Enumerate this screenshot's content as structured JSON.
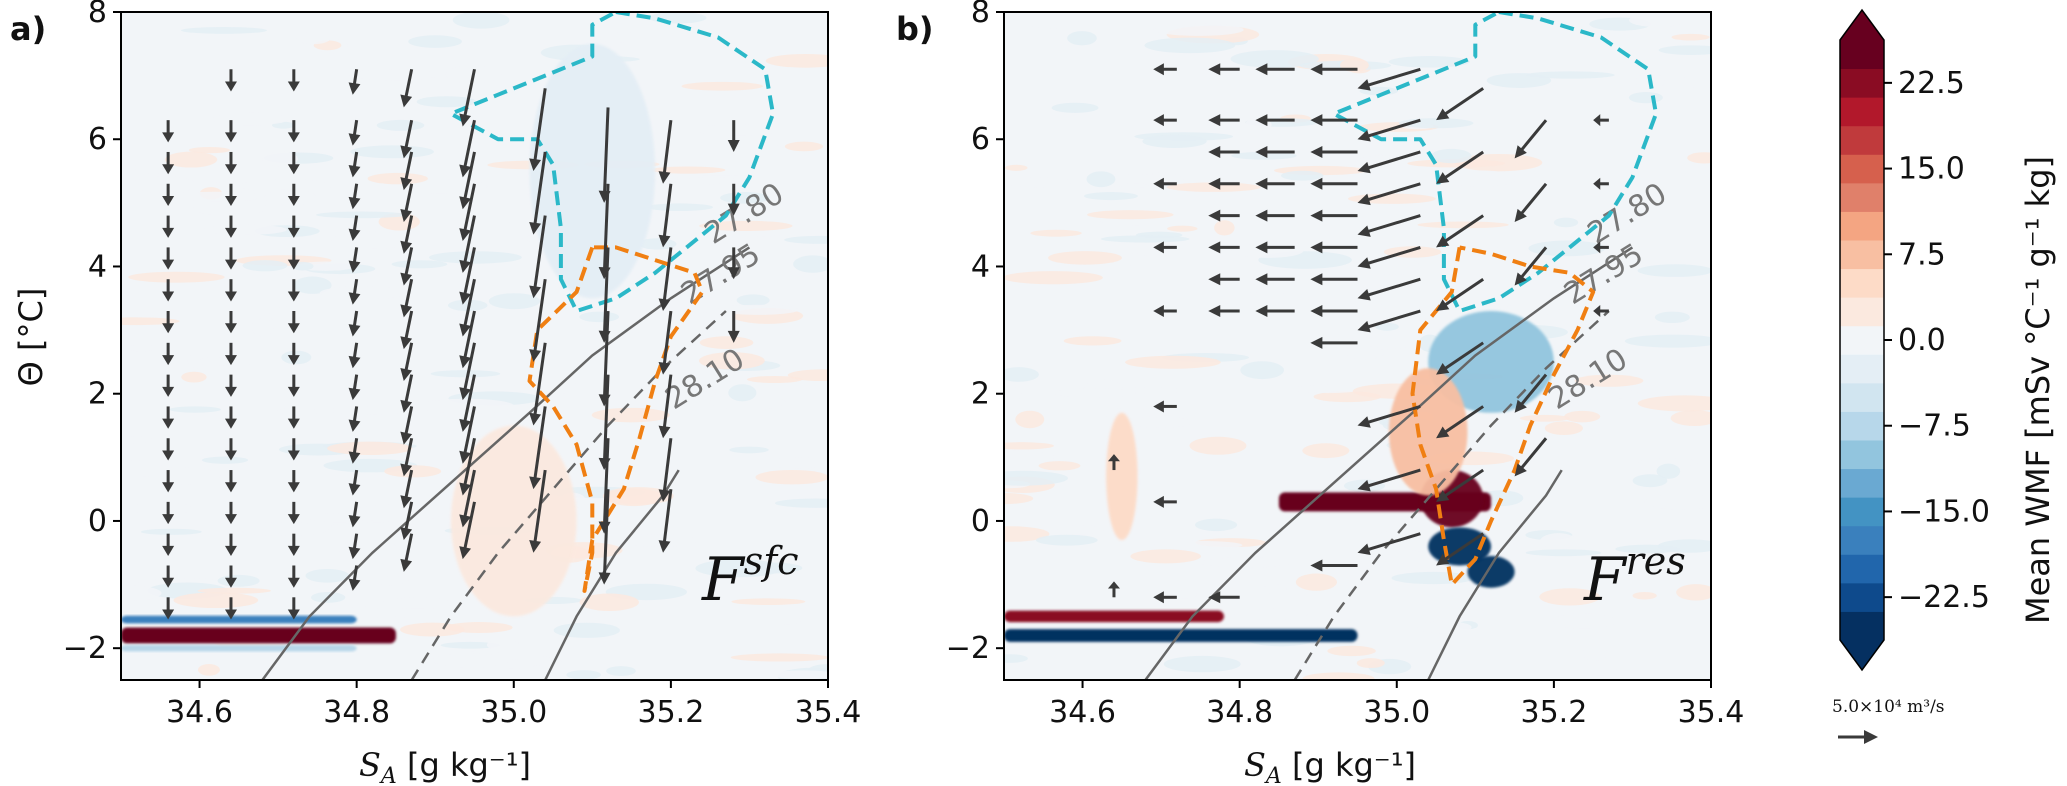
{
  "colors": {
    "arrow": "#3a3a3a",
    "isopycnal": "#666666",
    "cyan_contour": "#2bb8c8",
    "orange_contour": "#f07f12",
    "cmap": [
      "#053061",
      "#0e4a8c",
      "#2166ac",
      "#3a80bd",
      "#4393c3",
      "#6aa9d2",
      "#92c5de",
      "#b7d7ea",
      "#d1e5f0",
      "#e4eef5",
      "#f2f5f8",
      "#fbe9df",
      "#fddbc7",
      "#f8bfa2",
      "#f4a582",
      "#e0806a",
      "#d6604d",
      "#c03a3c",
      "#b2182b",
      "#8a0c23",
      "#67001f"
    ]
  },
  "panels": [
    {
      "tag": "a)",
      "flux": "F",
      "flux_sup": "sfc"
    },
    {
      "tag": "b)",
      "flux": "F",
      "flux_sup": "res"
    }
  ],
  "axes": {
    "ylabel": "Θ [°C]",
    "xlabel_s": "S",
    "xlabel_sub": "A",
    "xlabel_rest": " [g kg⁻¹]",
    "xticks": [
      34.6,
      34.8,
      35.0,
      35.2,
      35.4
    ],
    "xtick_labels": [
      "34.6",
      "34.8",
      "35.0",
      "35.2",
      "35.4"
    ],
    "yticks": [
      -2,
      0,
      2,
      4,
      6,
      8
    ],
    "ytick_labels": [
      "−2",
      "0",
      "2",
      "4",
      "6",
      "8"
    ],
    "xlim": [
      34.5,
      35.4
    ],
    "ylim": [
      -2.5,
      8
    ]
  },
  "isopycnals": [
    {
      "label": "27.80",
      "style": "solid"
    },
    {
      "label": "27.95",
      "style": "dashed"
    },
    {
      "label": "28.10",
      "style": "solid"
    }
  ],
  "colorbar": {
    "label": "Mean WMF [mSv °C⁻¹ g⁻¹ kg]",
    "ticks": [
      22.5,
      15.0,
      7.5,
      0.0,
      -7.5,
      -15.0,
      -22.5
    ],
    "tick_labels": [
      "22.5",
      "15.0",
      "7.5",
      "0.0",
      "−7.5",
      "−15.0",
      "−22.5"
    ],
    "range": [
      -26.25,
      26.25
    ]
  },
  "quiver_key": {
    "label": "5.0×10⁴ m³/s"
  },
  "chart_data": [
    {
      "type": "heatmap",
      "panel": "a)",
      "description_of_fields": "Filled contours of mean water mass transformation with transformation-velocity arrows in S_A–Θ space",
      "xlabel": "S_A [g kg⁻¹]",
      "ylabel": "Θ [°C]",
      "xlim": [
        34.5,
        35.4
      ],
      "ylim": [
        -2.5,
        8
      ],
      "label": "F^sfc",
      "features": [
        {
          "kind": "band",
          "value": 26,
          "s": [
            34.5,
            34.85
          ],
          "t": -1.8,
          "thickness": 0.25
        },
        {
          "kind": "band",
          "value": -18,
          "s": [
            34.5,
            34.8
          ],
          "t": -1.55,
          "thickness": 0.12
        },
        {
          "kind": "band",
          "value": -8,
          "s": [
            34.5,
            34.8
          ],
          "t": -2.0,
          "thickness": 0.1
        },
        {
          "kind": "blob",
          "value": 3,
          "s": 35.0,
          "t": 0.0,
          "rs": 0.08,
          "rt": 1.5
        },
        {
          "kind": "blob",
          "value": -3,
          "s": 35.1,
          "t": 5.5,
          "rs": 0.08,
          "rt": 2.0
        }
      ],
      "arrow_columns": [
        {
          "s": 34.56,
          "t": [
            6.3,
            5.8,
            5.3,
            4.8,
            4.3,
            3.8,
            3.3,
            2.8,
            2.3,
            1.8,
            1.3,
            0.8,
            0.3,
            -0.2,
            -0.7,
            -1.2
          ],
          "dt": -0.35,
          "ds": 0.0
        },
        {
          "s": 34.64,
          "t": [
            7.1,
            6.3,
            5.8,
            5.3,
            4.8,
            4.3,
            3.8,
            3.3,
            2.8,
            2.3,
            1.8,
            1.3,
            0.8,
            0.3,
            -0.2,
            -0.7,
            -1.2
          ],
          "dt": -0.35,
          "ds": 0.0
        },
        {
          "s": 34.72,
          "t": [
            7.1,
            6.3,
            5.8,
            5.3,
            4.8,
            4.3,
            3.8,
            3.3,
            2.8,
            2.3,
            1.8,
            1.3,
            0.8,
            0.3,
            -0.2,
            -0.7,
            -1.2
          ],
          "dt": -0.35,
          "ds": 0.0
        },
        {
          "s": 34.8,
          "t": [
            7.1,
            6.3,
            5.8,
            5.3,
            4.8,
            4.3,
            3.8,
            3.3,
            2.8,
            2.3,
            1.8,
            1.3,
            0.8,
            0.3,
            -0.2,
            -0.7
          ],
          "dt": -0.4,
          "ds": -0.005
        },
        {
          "s": 34.87,
          "t": [
            7.1,
            6.3,
            5.8,
            5.3,
            4.8,
            4.3,
            3.8,
            3.3,
            2.8,
            2.3,
            1.8,
            1.3,
            0.8,
            0.3,
            -0.2
          ],
          "dt": -0.6,
          "ds": -0.01
        },
        {
          "s": 34.95,
          "t": [
            7.1,
            6.3,
            5.8,
            5.3,
            4.8,
            4.3,
            3.8,
            3.3,
            2.8,
            2.3,
            1.8,
            1.3,
            0.8,
            0.3
          ],
          "dt": -0.9,
          "ds": -0.015
        },
        {
          "s": 35.04,
          "t": [
            6.8,
            5.8,
            4.8,
            3.8,
            2.8,
            1.8,
            0.8
          ],
          "dt": -1.3,
          "ds": -0.015
        },
        {
          "s": 35.12,
          "t": [
            6.5,
            5.3,
            4.3,
            3.3,
            2.3,
            1.3,
            0.5
          ],
          "dt": -1.5,
          "ds": -0.005
        },
        {
          "s": 35.2,
          "t": [
            6.3,
            5.3,
            4.3,
            3.3,
            2.3,
            1.3,
            0.5
          ],
          "dt": -1.0,
          "ds": -0.01
        },
        {
          "s": 35.28,
          "t": [
            6.3,
            5.3,
            4.3,
            3.3
          ],
          "dt": -0.5,
          "ds": 0.0
        }
      ]
    },
    {
      "type": "heatmap",
      "panel": "b)",
      "description_of_fields": "Filled contours of mean water mass transformation with transformation-velocity arrows in S_A–Θ space",
      "xlabel": "S_A [g kg⁻¹]",
      "ylabel": "Θ [°C]",
      "xlim": [
        34.5,
        35.4
      ],
      "ylim": [
        -2.5,
        8
      ],
      "label": "F^res",
      "features": [
        {
          "kind": "band",
          "value": 22,
          "s": [
            34.5,
            34.78
          ],
          "t": -1.5,
          "thickness": 0.18
        },
        {
          "kind": "band",
          "value": -26,
          "s": [
            34.5,
            34.95
          ],
          "t": -1.8,
          "thickness": 0.2
        },
        {
          "kind": "band",
          "value": 26,
          "s": [
            34.85,
            35.12
          ],
          "t": 0.3,
          "thickness": 0.3
        },
        {
          "kind": "blob",
          "value": 26,
          "s": 35.07,
          "t": 0.35,
          "rs": 0.04,
          "rt": 0.45
        },
        {
          "kind": "blob",
          "value": -26,
          "s": 35.08,
          "t": -0.4,
          "rs": 0.04,
          "rt": 0.3
        },
        {
          "kind": "blob",
          "value": -26,
          "s": 35.12,
          "t": -0.8,
          "rs": 0.03,
          "rt": 0.25
        },
        {
          "kind": "blob",
          "value": -9,
          "s": 35.12,
          "t": 2.5,
          "rs": 0.08,
          "rt": 0.8
        },
        {
          "kind": "blob",
          "value": 8,
          "s": 35.04,
          "t": 1.4,
          "rs": 0.05,
          "rt": 1.0
        },
        {
          "kind": "blob",
          "value": 5,
          "s": 34.65,
          "t": 0.7,
          "rs": 0.02,
          "rt": 1.0
        }
      ],
      "arrow_columns": [
        {
          "s": 34.64,
          "t": [
            0.8,
            -1.2
          ],
          "dt": 0.25,
          "ds": 0.0
        },
        {
          "s": 34.72,
          "t": [
            7.1,
            6.3,
            5.3,
            4.3,
            3.3,
            1.8,
            0.3,
            -1.2
          ],
          "dt": 0.0,
          "ds": -0.03
        },
        {
          "s": 34.8,
          "t": [
            7.1,
            6.3,
            5.8,
            5.3,
            4.8,
            4.3,
            3.8,
            3.3,
            -1.2
          ],
          "dt": 0.0,
          "ds": -0.04
        },
        {
          "s": 34.87,
          "t": [
            7.1,
            6.3,
            5.8,
            5.3,
            4.8,
            4.3,
            3.8,
            3.3
          ],
          "dt": 0.0,
          "ds": -0.05
        },
        {
          "s": 34.95,
          "t": [
            7.1,
            6.3,
            5.8,
            5.3,
            4.8,
            4.3,
            3.8,
            3.3,
            2.8,
            -0.7
          ],
          "dt": 0.0,
          "ds": -0.06
        },
        {
          "s": 35.03,
          "t": [
            7.1,
            6.3,
            5.8,
            5.3,
            4.8,
            4.3,
            3.8,
            3.3,
            1.8,
            0.8,
            -0.2
          ],
          "dt": -0.3,
          "ds": -0.08
        },
        {
          "s": 35.11,
          "t": [
            6.8,
            5.8,
            4.8,
            3.8,
            2.8,
            1.8,
            0.8,
            -0.2
          ],
          "dt": -0.5,
          "ds": -0.06
        },
        {
          "s": 35.19,
          "t": [
            6.3,
            5.3,
            4.3,
            2.3,
            1.3
          ],
          "dt": -0.6,
          "ds": -0.04
        },
        {
          "s": 35.27,
          "t": [
            6.3,
            5.3,
            4.3,
            3.3
          ],
          "dt": 0.0,
          "ds": -0.02
        }
      ]
    }
  ]
}
